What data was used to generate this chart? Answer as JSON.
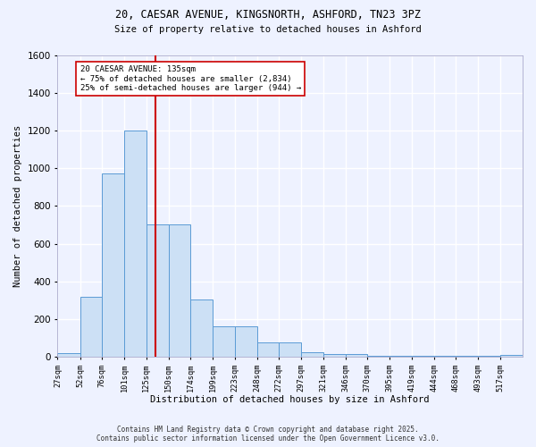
{
  "title_line1": "20, CAESAR AVENUE, KINGSNORTH, ASHFORD, TN23 3PZ",
  "title_line2": "Size of property relative to detached houses in Ashford",
  "xlabel": "Distribution of detached houses by size in Ashford",
  "ylabel": "Number of detached properties",
  "bin_edges": [
    27,
    52,
    76,
    101,
    125,
    150,
    174,
    199,
    223,
    248,
    272,
    297,
    321,
    346,
    370,
    395,
    419,
    444,
    468,
    493,
    517
  ],
  "bar_heights": [
    20,
    320,
    970,
    1200,
    700,
    700,
    305,
    160,
    160,
    75,
    75,
    25,
    15,
    15,
    5,
    5,
    5,
    5,
    5,
    5,
    10
  ],
  "bar_color": "#cce0f5",
  "bar_edge_color": "#5b9bd5",
  "vline_x": 135,
  "vline_color": "#cc0000",
  "annotation_text": "20 CAESAR AVENUE: 135sqm\n← 75% of detached houses are smaller (2,834)\n25% of semi-detached houses are larger (944) →",
  "annotation_box_color": "#ffffff",
  "annotation_box_edge_color": "#cc0000",
  "ylim": [
    0,
    1600
  ],
  "yticks": [
    0,
    200,
    400,
    600,
    800,
    1000,
    1200,
    1400,
    1600
  ],
  "background_color": "#eef2ff",
  "grid_color": "#ffffff",
  "footer_line1": "Contains HM Land Registry data © Crown copyright and database right 2025.",
  "footer_line2": "Contains public sector information licensed under the Open Government Licence v3.0.",
  "tick_labels": [
    "27sqm",
    "52sqm",
    "76sqm",
    "101sqm",
    "125sqm",
    "150sqm",
    "174sqm",
    "199sqm",
    "223sqm",
    "248sqm",
    "272sqm",
    "297sqm",
    "321sqm",
    "346sqm",
    "370sqm",
    "395sqm",
    "419sqm",
    "444sqm",
    "468sqm",
    "493sqm",
    "517sqm"
  ]
}
